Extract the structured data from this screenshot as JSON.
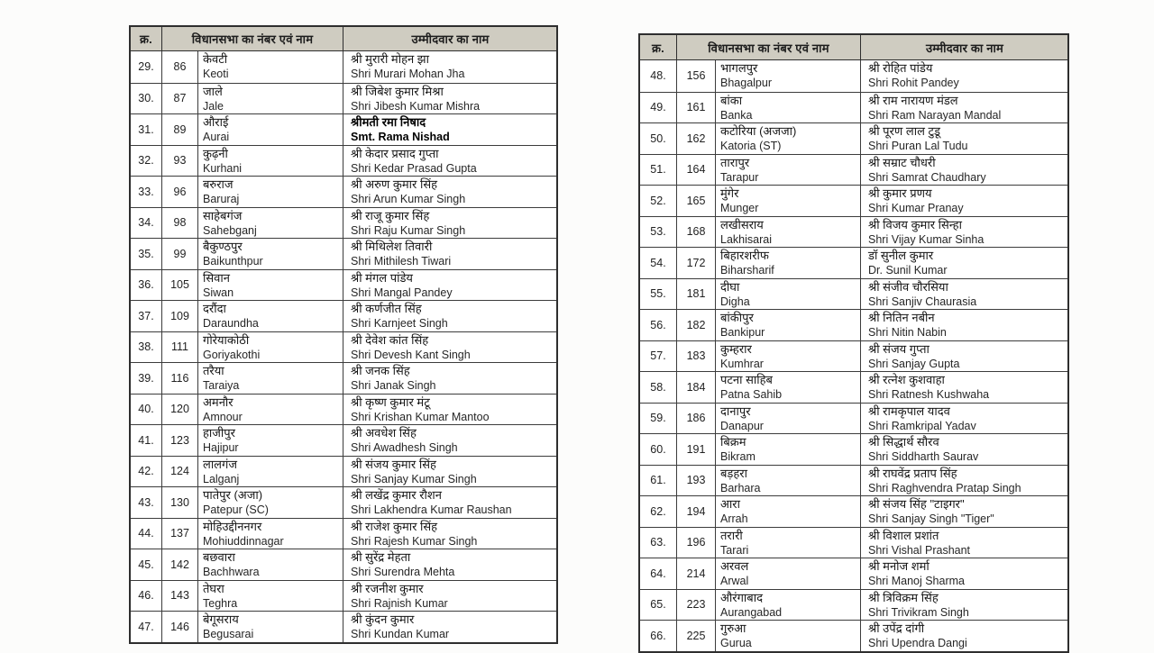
{
  "header": {
    "col_serial": "क्र.",
    "col_constituency": "विधानसभा का नंबर एवं नाम",
    "col_candidate": "उम्मीदवार का नाम"
  },
  "tables": [
    {
      "id": "left",
      "rows": [
        {
          "sl": "29.",
          "num": "86",
          "name_hi": "केवटी",
          "name_en": "Keoti",
          "cand_hi": "श्री मुरारी मोहन झा",
          "cand_en": "Shri Murari Mohan Jha",
          "bold": false
        },
        {
          "sl": "30.",
          "num": "87",
          "name_hi": "जाले",
          "name_en": "Jale",
          "cand_hi": "श्री जिबेश कुमार मिश्रा",
          "cand_en": "Shri Jibesh Kumar Mishra",
          "bold": false
        },
        {
          "sl": "31.",
          "num": "89",
          "name_hi": "औराई",
          "name_en": "Aurai",
          "cand_hi": "श्रीमती रमा निषाद",
          "cand_en": "Smt. Rama Nishad",
          "bold": true
        },
        {
          "sl": "32.",
          "num": "93",
          "name_hi": "कुढ़नी",
          "name_en": "Kurhani",
          "cand_hi": "श्री केदार प्रसाद गुप्ता",
          "cand_en": "Shri Kedar Prasad Gupta",
          "bold": false
        },
        {
          "sl": "33.",
          "num": "96",
          "name_hi": "बरुराज",
          "name_en": "Baruraj",
          "cand_hi": "श्री अरुण कुमार सिंह",
          "cand_en": "Shri Arun Kumar Singh",
          "bold": false
        },
        {
          "sl": "34.",
          "num": "98",
          "name_hi": "साहेबगंज",
          "name_en": "Sahebganj",
          "cand_hi": "श्री राजू कुमार सिंह",
          "cand_en": "Shri Raju Kumar Singh",
          "bold": false
        },
        {
          "sl": "35.",
          "num": "99",
          "name_hi": "बैकुण्ठपुर",
          "name_en": "Baikunthpur",
          "cand_hi": "श्री मिथिलेश तिवारी",
          "cand_en": "Shri Mithilesh Tiwari",
          "bold": false
        },
        {
          "sl": "36.",
          "num": "105",
          "name_hi": "सिवान",
          "name_en": "Siwan",
          "cand_hi": "श्री मंगल पांडेय",
          "cand_en": "Shri Mangal Pandey",
          "bold": false
        },
        {
          "sl": "37.",
          "num": "109",
          "name_hi": "दरौंदा",
          "name_en": "Daraundha",
          "cand_hi": "श्री कर्णजीत सिंह",
          "cand_en": "Shri Karnjeet Singh",
          "bold": false
        },
        {
          "sl": "38.",
          "num": "111",
          "name_hi": "गोरेयाकोठी",
          "name_en": "Goriyakothi",
          "cand_hi": "श्री देवेश कांत सिंह",
          "cand_en": "Shri Devesh Kant Singh",
          "bold": false
        },
        {
          "sl": "39.",
          "num": "116",
          "name_hi": "तरैया",
          "name_en": "Taraiya",
          "cand_hi": "श्री जनक सिंह",
          "cand_en": "Shri Janak Singh",
          "bold": false
        },
        {
          "sl": "40.",
          "num": "120",
          "name_hi": "अमनौर",
          "name_en": "Amnour",
          "cand_hi": "श्री कृष्ण कुमार मंटू",
          "cand_en": "Shri Krishan Kumar Mantoo",
          "bold": false
        },
        {
          "sl": "41.",
          "num": "123",
          "name_hi": "हाजीपुर",
          "name_en": "Hajipur",
          "cand_hi": "श्री अवधेश सिंह",
          "cand_en": "Shri Awadhesh Singh",
          "bold": false
        },
        {
          "sl": "42.",
          "num": "124",
          "name_hi": "लालगंज",
          "name_en": "Lalganj",
          "cand_hi": "श्री संजय कुमार सिंह",
          "cand_en": "Shri Sanjay Kumar Singh",
          "bold": false
        },
        {
          "sl": "43.",
          "num": "130",
          "name_hi": "पातेपुर (अजा)",
          "name_en": "Patepur (SC)",
          "cand_hi": "श्री लखेंद्र कुमार रौशन",
          "cand_en": "Shri Lakhendra Kumar Raushan",
          "bold": false
        },
        {
          "sl": "44.",
          "num": "137",
          "name_hi": "मोहिउद्दीननगर",
          "name_en": "Mohiuddinnagar",
          "cand_hi": "श्री राजेश कुमार सिंह",
          "cand_en": "Shri Rajesh Kumar Singh",
          "bold": false
        },
        {
          "sl": "45.",
          "num": "142",
          "name_hi": "बछवारा",
          "name_en": "Bachhwara",
          "cand_hi": "श्री सुरेंद्र मेहता",
          "cand_en": "Shri Surendra Mehta",
          "bold": false
        },
        {
          "sl": "46.",
          "num": "143",
          "name_hi": "तेघरा",
          "name_en": "Teghra",
          "cand_hi": "श्री रजनीश कुमार",
          "cand_en": "Shri Rajnish Kumar",
          "bold": false
        },
        {
          "sl": "47.",
          "num": "146",
          "name_hi": "बेगूसराय",
          "name_en": "Begusarai",
          "cand_hi": "श्री कुंदन कुमार",
          "cand_en": "Shri Kundan Kumar",
          "bold": false
        }
      ]
    },
    {
      "id": "right",
      "rows": [
        {
          "sl": "48.",
          "num": "156",
          "name_hi": "भागलपुर",
          "name_en": "Bhagalpur",
          "cand_hi": "श्री रोहित पांडेय",
          "cand_en": "Shri Rohit Pandey",
          "bold": false
        },
        {
          "sl": "49.",
          "num": "161",
          "name_hi": "बांका",
          "name_en": "Banka",
          "cand_hi": "श्री राम नारायण मंडल",
          "cand_en": "Shri Ram Narayan Mandal",
          "bold": false
        },
        {
          "sl": "50.",
          "num": "162",
          "name_hi": "कटोरिया (अजजा)",
          "name_en": "Katoria (ST)",
          "cand_hi": "श्री पूरण लाल टुडू",
          "cand_en": "Shri Puran Lal Tudu",
          "bold": false
        },
        {
          "sl": "51.",
          "num": "164",
          "name_hi": "तारापुर",
          "name_en": "Tarapur",
          "cand_hi": "श्री सम्राट चौधरी",
          "cand_en": "Shri Samrat Chaudhary",
          "bold": false
        },
        {
          "sl": "52.",
          "num": "165",
          "name_hi": "मुंगेर",
          "name_en": "Munger",
          "cand_hi": "श्री कुमार प्रणय",
          "cand_en": "Shri Kumar Pranay",
          "bold": false
        },
        {
          "sl": "53.",
          "num": "168",
          "name_hi": "लखीसराय",
          "name_en": "Lakhisarai",
          "cand_hi": "श्री विजय कुमार सिन्हा",
          "cand_en": "Shri Vijay Kumar Sinha",
          "bold": false
        },
        {
          "sl": "54.",
          "num": "172",
          "name_hi": "बिहारशरीफ",
          "name_en": "Biharsharif",
          "cand_hi": "डॉ सुनील कुमार",
          "cand_en": "Dr. Sunil Kumar",
          "bold": false
        },
        {
          "sl": "55.",
          "num": "181",
          "name_hi": "दीघा",
          "name_en": "Digha",
          "cand_hi": "श्री संजीव चौरसिया",
          "cand_en": "Shri Sanjiv Chaurasia",
          "bold": false
        },
        {
          "sl": "56.",
          "num": "182",
          "name_hi": "बांकीपुर",
          "name_en": "Bankipur",
          "cand_hi": "श्री नितिन नबीन",
          "cand_en": "Shri Nitin Nabin",
          "bold": false
        },
        {
          "sl": "57.",
          "num": "183",
          "name_hi": "कुम्हरार",
          "name_en": "Kumhrar",
          "cand_hi": "श्री संजय गुप्ता",
          "cand_en": "Shri Sanjay Gupta",
          "bold": false
        },
        {
          "sl": "58.",
          "num": "184",
          "name_hi": "पटना साहिब",
          "name_en": "Patna Sahib",
          "cand_hi": "श्री रत्नेश कुशवाहा",
          "cand_en": "Shri Ratnesh Kushwaha",
          "bold": false
        },
        {
          "sl": "59.",
          "num": "186",
          "name_hi": "दानापुर",
          "name_en": "Danapur",
          "cand_hi": "श्री रामकृपाल यादव",
          "cand_en": "Shri Ramkripal Yadav",
          "bold": false
        },
        {
          "sl": "60.",
          "num": "191",
          "name_hi": "बिक्रम",
          "name_en": "Bikram",
          "cand_hi": "श्री सिद्धार्थ सौरव",
          "cand_en": "Shri Siddharth Saurav",
          "bold": false
        },
        {
          "sl": "61.",
          "num": "193",
          "name_hi": "बड़हरा",
          "name_en": "Barhara",
          "cand_hi": "श्री राघवेंद्र प्रताप सिंह",
          "cand_en": "Shri Raghvendra Pratap Singh",
          "bold": false
        },
        {
          "sl": "62.",
          "num": "194",
          "name_hi": "आरा",
          "name_en": "Arrah",
          "cand_hi": "श्री संजय सिंह \"टाइगर\"",
          "cand_en": "Shri Sanjay Singh \"Tiger\"",
          "bold": false
        },
        {
          "sl": "63.",
          "num": "196",
          "name_hi": "तरारी",
          "name_en": "Tarari",
          "cand_hi": "श्री विशाल प्रशांत",
          "cand_en": "Shri Vishal Prashant",
          "bold": false
        },
        {
          "sl": "64.",
          "num": "214",
          "name_hi": "अरवल",
          "name_en": "Arwal",
          "cand_hi": "श्री मनोज शर्मा",
          "cand_en": "Shri Manoj Sharma",
          "bold": false
        },
        {
          "sl": "65.",
          "num": "223",
          "name_hi": "औरंगाबाद",
          "name_en": "Aurangabad",
          "cand_hi": "श्री त्रिविक्रम सिंह",
          "cand_en": "Shri Trivikram Singh",
          "bold": false
        },
        {
          "sl": "66.",
          "num": "225",
          "name_hi": "गुरुआ",
          "name_en": "Gurua",
          "cand_hi": "श्री उपेंद्र दांगी",
          "cand_en": "Shri Upendra Dangi",
          "bold": false
        }
      ]
    }
  ]
}
